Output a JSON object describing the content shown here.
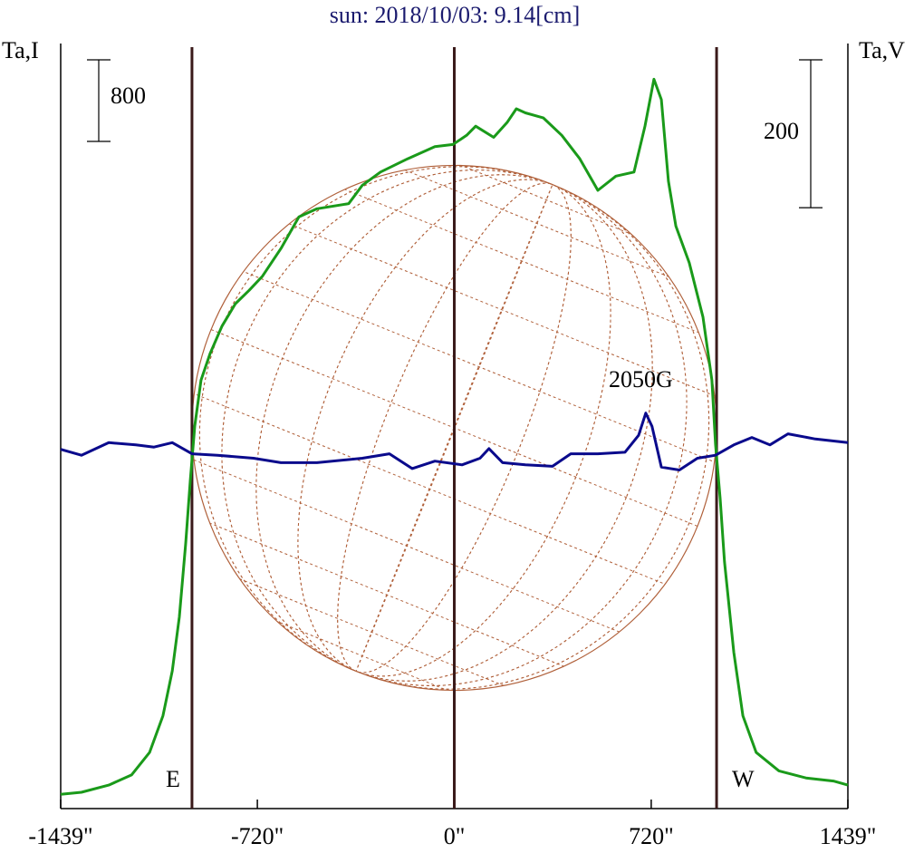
{
  "chart_data": {
    "type": "line",
    "title": "sun: 2018/10/03: 9.14[cm]",
    "ylabel": "Ta,I",
    "y2label": "Ta,V",
    "xlim": [
      -1439,
      1439
    ],
    "xticks": [
      {
        "value": -1439,
        "label": "-1439\""
      },
      {
        "value": -720,
        "label": "-720\""
      },
      {
        "value": 0,
        "label": "0\""
      },
      {
        "value": 720,
        "label": "720\""
      },
      {
        "value": 1439,
        "label": "1439\""
      }
    ],
    "ylim": [
      0,
      7500
    ],
    "y2lim": [
      -480,
      555
    ],
    "limb": 959,
    "vlines": [
      -959,
      0,
      959
    ],
    "scale_bars": [
      {
        "value": 800,
        "axis": "y"
      },
      {
        "value": 200,
        "axis": "y2"
      }
    ],
    "annotations": [
      {
        "text": "2050G"
      },
      {
        "text": "E"
      },
      {
        "text": "W"
      }
    ],
    "series": [
      {
        "color": "#1a9a1a",
        "axis": "y",
        "x": [
          -1439,
          -1363,
          -1263,
          -1180,
          -1114,
          -1065,
          -1031,
          -1005,
          -982,
          -965,
          -949,
          -926,
          -893,
          -849,
          -800,
          -750,
          -701,
          -634,
          -568,
          -502,
          -386,
          -336,
          -270,
          -171,
          -71,
          -5,
          45,
          78,
          144,
          194,
          227,
          260,
          326,
          393,
          459,
          525,
          591,
          657,
          697,
          730,
          757,
          783,
          810,
          859,
          909,
          942,
          955,
          972,
          988,
          1022,
          1055,
          1104,
          1187,
          1286,
          1386,
          1439
        ],
        "values": [
          140,
          160,
          230,
          330,
          550,
          910,
          1350,
          1880,
          2600,
          3220,
          3750,
          4200,
          4460,
          4730,
          4950,
          5080,
          5220,
          5490,
          5800,
          5880,
          5930,
          6110,
          6240,
          6370,
          6490,
          6510,
          6600,
          6690,
          6580,
          6730,
          6860,
          6820,
          6770,
          6600,
          6370,
          6060,
          6200,
          6240,
          6690,
          7150,
          6950,
          6150,
          5710,
          5350,
          4820,
          4200,
          3570,
          3040,
          2420,
          1530,
          910,
          550,
          370,
          300,
          270,
          230
        ]
      },
      {
        "color": "#0a0a8c",
        "axis": "y2",
        "x": [
          -1439,
          -1363,
          -1263,
          -1164,
          -1098,
          -1031,
          -959,
          -866,
          -734,
          -634,
          -502,
          -336,
          -237,
          -154,
          -71,
          28,
          94,
          127,
          177,
          260,
          359,
          426,
          525,
          624,
          674,
          700,
          723,
          757,
          823,
          889,
          955,
          1022,
          1088,
          1154,
          1220,
          1320,
          1439
        ],
        "values": [
          6,
          -2,
          15,
          12,
          9,
          15,
          0,
          -2,
          -6,
          -12,
          -12,
          -6,
          0,
          -20,
          -10,
          -15,
          -6,
          7,
          -12,
          -15,
          -17,
          0,
          0,
          2,
          25,
          55,
          37,
          -18,
          -22,
          -6,
          -2,
          12,
          22,
          12,
          27,
          20,
          15
        ]
      }
    ]
  }
}
